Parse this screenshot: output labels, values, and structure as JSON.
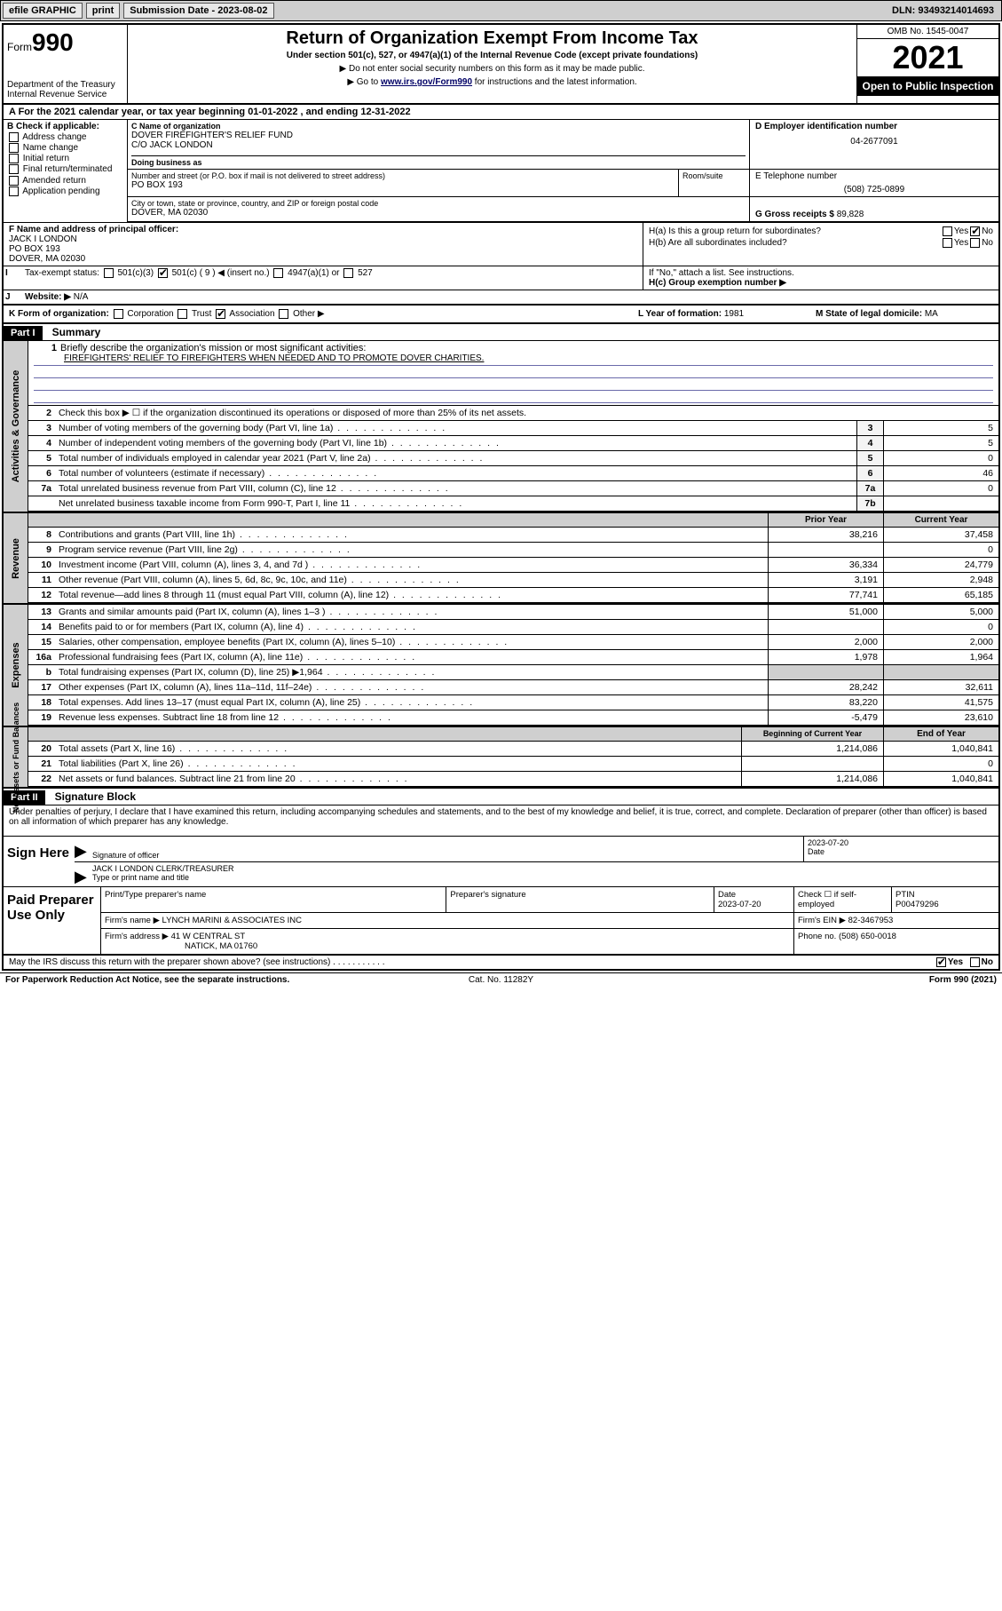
{
  "topbar": {
    "efile_label": "efile GRAPHIC",
    "print_label": "print",
    "sub_date_label": "Submission Date - 2023-08-02",
    "dln_label": "DLN: 93493214014693"
  },
  "header": {
    "form_word": "Form",
    "form_no": "990",
    "dept": "Department of the Treasury Internal Revenue Service",
    "title": "Return of Organization Exempt From Income Tax",
    "sub": "Under section 501(c), 527, or 4947(a)(1) of the Internal Revenue Code (except private foundations)",
    "note1": "▶ Do not enter social security numbers on this form as it may be made public.",
    "note2_pre": "▶ Go to ",
    "note2_link": "www.irs.gov/Form990",
    "note2_post": " for instructions and the latest information.",
    "omb": "OMB No. 1545-0047",
    "year": "2021",
    "open": "Open to Public Inspection"
  },
  "period": "A For the 2021 calendar year, or tax year beginning 01-01-2022   , and ending 12-31-2022",
  "blockB": {
    "hdr": "B Check if applicable:",
    "items": [
      "Address change",
      "Name change",
      "Initial return",
      "Final return/terminated",
      "Amended return",
      "Application pending"
    ]
  },
  "blockC": {
    "name_lbl": "C Name of organization",
    "name": "DOVER FIREFIGHTER'S RELIEF FUND",
    "care": "C/O JACK LONDON",
    "dba_lbl": "Doing business as",
    "street_lbl": "Number and street (or P.O. box if mail is not delivered to street address)",
    "street": "PO BOX 193",
    "room_lbl": "Room/suite",
    "city_lbl": "City or town, state or province, country, and ZIP or foreign postal code",
    "city": "DOVER, MA  02030"
  },
  "blockD": {
    "lbl": "D Employer identification number",
    "val": "04-2677091"
  },
  "blockE": {
    "lbl": "E Telephone number",
    "val": "(508) 725-0899"
  },
  "blockG": {
    "lbl": "G Gross receipts $",
    "val": "89,828"
  },
  "blockF": {
    "lbl": "F Name and address of principal officer:",
    "name": "JACK I LONDON",
    "addr1": "PO BOX 193",
    "addr2": "DOVER, MA  02030"
  },
  "blockH": {
    "a": "H(a)  Is this a group return for subordinates?",
    "a_yes": "Yes",
    "a_no": "No",
    "b": "H(b)  Are all subordinates included?",
    "b_note": "If \"No,\" attach a list. See instructions.",
    "c": "H(c)  Group exemption number ▶"
  },
  "rowI": {
    "lbl": "Tax-exempt status:",
    "opt1": "501(c)(3)",
    "opt2": "501(c) ( 9 ) ◀ (insert no.)",
    "opt3": "4947(a)(1) or",
    "opt4": "527"
  },
  "rowJ": {
    "lbl": "Website: ▶",
    "val": "N/A"
  },
  "rowK": {
    "lbl": "K Form of organization:",
    "opts": [
      "Corporation",
      "Trust",
      "Association",
      "Other ▶"
    ],
    "checked_idx": 2
  },
  "rowL": {
    "lbl": "L Year of formation:",
    "val": "1981"
  },
  "rowM": {
    "lbl": "M State of legal domicile:",
    "val": "MA"
  },
  "partI": {
    "tag": "Part I",
    "title": "Summary"
  },
  "summary": {
    "line1_lbl": "Briefly describe the organization's mission or most significant activities:",
    "line1_txt": "FIREFIGHTERS' RELIEF TO FIREFIGHTERS WHEN NEEDED AND TO PROMOTE DOVER CHARITIES.",
    "line2": "Check this box ▶ ☐  if the organization discontinued its operations or disposed of more than 25% of its net assets.",
    "gov_lines": [
      {
        "n": "3",
        "d": "Number of voting members of the governing body (Part VI, line 1a)",
        "box": "3",
        "v": "5"
      },
      {
        "n": "4",
        "d": "Number of independent voting members of the governing body (Part VI, line 1b)",
        "box": "4",
        "v": "5"
      },
      {
        "n": "5",
        "d": "Total number of individuals employed in calendar year 2021 (Part V, line 2a)",
        "box": "5",
        "v": "0"
      },
      {
        "n": "6",
        "d": "Total number of volunteers (estimate if necessary)",
        "box": "6",
        "v": "46"
      },
      {
        "n": "7a",
        "d": "Total unrelated business revenue from Part VIII, column (C), line 12",
        "box": "7a",
        "v": "0"
      },
      {
        "n": "",
        "d": "Net unrelated business taxable income from Form 990-T, Part I, line 11",
        "box": "7b",
        "v": ""
      }
    ],
    "col_hdr_prior": "Prior Year",
    "col_hdr_curr": "Current Year",
    "rev_lines": [
      {
        "n": "8",
        "d": "Contributions and grants (Part VIII, line 1h)",
        "p": "38,216",
        "c": "37,458"
      },
      {
        "n": "9",
        "d": "Program service revenue (Part VIII, line 2g)",
        "p": "",
        "c": "0"
      },
      {
        "n": "10",
        "d": "Investment income (Part VIII, column (A), lines 3, 4, and 7d )",
        "p": "36,334",
        "c": "24,779"
      },
      {
        "n": "11",
        "d": "Other revenue (Part VIII, column (A), lines 5, 6d, 8c, 9c, 10c, and 11e)",
        "p": "3,191",
        "c": "2,948"
      },
      {
        "n": "12",
        "d": "Total revenue—add lines 8 through 11 (must equal Part VIII, column (A), line 12)",
        "p": "77,741",
        "c": "65,185"
      }
    ],
    "exp_lines": [
      {
        "n": "13",
        "d": "Grants and similar amounts paid (Part IX, column (A), lines 1–3 )",
        "p": "51,000",
        "c": "5,000"
      },
      {
        "n": "14",
        "d": "Benefits paid to or for members (Part IX, column (A), line 4)",
        "p": "",
        "c": "0"
      },
      {
        "n": "15",
        "d": "Salaries, other compensation, employee benefits (Part IX, column (A), lines 5–10)",
        "p": "2,000",
        "c": "2,000"
      },
      {
        "n": "16a",
        "d": "Professional fundraising fees (Part IX, column (A), line 11e)",
        "p": "1,978",
        "c": "1,964"
      },
      {
        "n": "b",
        "d": "Total fundraising expenses (Part IX, column (D), line 25) ▶1,964",
        "p": "__shade__",
        "c": "__shade__"
      },
      {
        "n": "17",
        "d": "Other expenses (Part IX, column (A), lines 11a–11d, 11f–24e)",
        "p": "28,242",
        "c": "32,611"
      },
      {
        "n": "18",
        "d": "Total expenses. Add lines 13–17 (must equal Part IX, column (A), line 25)",
        "p": "83,220",
        "c": "41,575"
      },
      {
        "n": "19",
        "d": "Revenue less expenses. Subtract line 18 from line 12",
        "p": "-5,479",
        "c": "23,610"
      }
    ],
    "bal_hdr_beg": "Beginning of Current Year",
    "bal_hdr_end": "End of Year",
    "bal_lines": [
      {
        "n": "20",
        "d": "Total assets (Part X, line 16)",
        "p": "1,214,086",
        "c": "1,040,841"
      },
      {
        "n": "21",
        "d": "Total liabilities (Part X, line 26)",
        "p": "",
        "c": "0"
      },
      {
        "n": "22",
        "d": "Net assets or fund balances. Subtract line 21 from line 20",
        "p": "1,214,086",
        "c": "1,040,841"
      }
    ],
    "side_gov": "Activities & Governance",
    "side_rev": "Revenue",
    "side_exp": "Expenses",
    "side_bal": "Net Assets or Fund Balances"
  },
  "partII": {
    "tag": "Part II",
    "title": "Signature Block"
  },
  "sig": {
    "decl": "Under penalties of perjury, I declare that I have examined this return, including accompanying schedules and statements, and to the best of my knowledge and belief, it is true, correct, and complete. Declaration of preparer (other than officer) is based on all information of which preparer has any knowledge.",
    "sign_here": "Sign Here",
    "sig_officer_lbl": "Signature of officer",
    "sig_date": "2023-07-20",
    "date_lbl": "Date",
    "name_title": "JACK I LONDON  CLERK/TREASURER",
    "name_lbl": "Type or print name and title"
  },
  "paid": {
    "title": "Paid Preparer Use Only",
    "hdr_name": "Print/Type preparer's name",
    "hdr_sig": "Preparer's signature",
    "hdr_date": "Date",
    "date": "2023-07-20",
    "hdr_check": "Check ☐ if self-employed",
    "hdr_ptin": "PTIN",
    "ptin": "P00479296",
    "firm_name_lbl": "Firm's name    ▶",
    "firm_name": "LYNCH MARINI & ASSOCIATES INC",
    "firm_ein_lbl": "Firm's EIN ▶",
    "firm_ein": "82-3467953",
    "firm_addr_lbl": "Firm's address ▶",
    "firm_addr1": "41 W CENTRAL ST",
    "firm_addr2": "NATICK, MA  01760",
    "phone_lbl": "Phone no.",
    "phone": "(508) 650-0018"
  },
  "bottom": {
    "discuss": "May the IRS discuss this return with the preparer shown above? (see instructions)",
    "yes": "Yes",
    "no": "No"
  },
  "foot": {
    "l": "For Paperwork Reduction Act Notice, see the separate instructions.",
    "c": "Cat. No. 11282Y",
    "r": "Form 990 (2021)"
  }
}
